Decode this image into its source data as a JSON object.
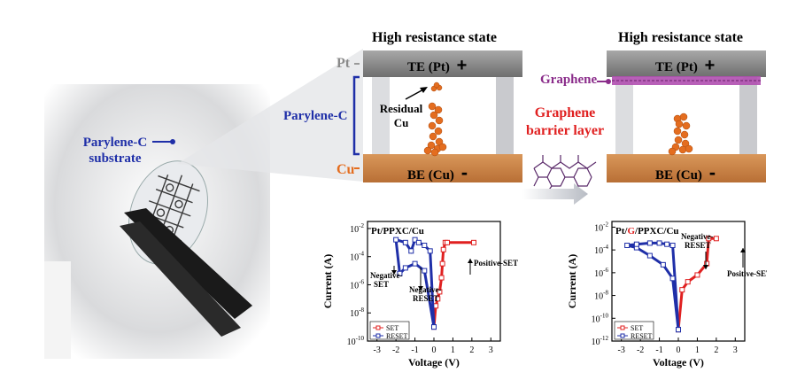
{
  "photo": {
    "label_line1": "Parylene-C",
    "label_line2": "substrate"
  },
  "left_device": {
    "title": "High resistance state",
    "pt_label": "Pt",
    "parylene_label": "Parylene-C",
    "cu_label": "Cu",
    "te_label": "TE (Pt)",
    "te_sign": "+",
    "be_label": "BE (Cu)",
    "be_sign": "-",
    "residual_line1": "Residual",
    "residual_line2": "Cu"
  },
  "middle": {
    "barrier_line1": "Graphene",
    "barrier_line2": "barrier layer"
  },
  "right_device": {
    "title": "High resistance state",
    "graphene_label": "Graphene",
    "te_label": "TE (Pt)",
    "te_sign": "+",
    "be_label": "BE (Cu)",
    "be_sign": "-"
  },
  "colors": {
    "blue": "#1f2fa8",
    "orange": "#e46d1f",
    "purple": "#8b2d8b",
    "red": "#e02020"
  },
  "chart_data": [
    {
      "type": "line",
      "title": "Pt/PPXC/Cu",
      "xlabel": "Voltage (V)",
      "ylabel": "Current (A)",
      "xlim": [
        -3.5,
        3.5
      ],
      "ylim": [
        -10,
        -1.5
      ],
      "xticks": [
        "-3",
        "-2",
        "-1",
        "0",
        "1",
        "2",
        "3"
      ],
      "yticks": [
        "10^-10",
        "10^-8",
        "10^-6",
        "10^-4",
        "10^-2"
      ],
      "legend": [
        "SET",
        "RESET"
      ],
      "annotations": [
        "Negative-SET",
        "Negative-RESET",
        "Positive-SET"
      ],
      "series": [
        {
          "name": "SET",
          "color": "#e02020",
          "x": [
            0,
            0.1,
            0.2,
            0.3,
            0.4,
            0.45,
            0.5,
            0.6,
            0.7,
            2.1
          ],
          "y": [
            -9,
            -7.5,
            -7,
            -6.5,
            -5.5,
            -4.5,
            -3.5,
            -3,
            -3,
            -3
          ]
        },
        {
          "name": "RESET",
          "color": "#1f2fa8",
          "x": [
            0,
            -0.5,
            -1,
            -1.5,
            -1.8,
            -2.0,
            -1.5,
            -1.2,
            -1.0,
            -0.8,
            -0.5,
            -0.2,
            0
          ],
          "y": [
            -9,
            -5,
            -4.5,
            -4.8,
            -5.2,
            -2.8,
            -3.0,
            -3.6,
            -2.8,
            -3.0,
            -3.2,
            -3.6,
            -9
          ]
        }
      ]
    },
    {
      "type": "line",
      "title": "Pt/G/PPXC/Cu",
      "title_parts": [
        "Pt/",
        "G",
        "/PPXC/Cu"
      ],
      "xlabel": "Voltage (V)",
      "ylabel": "Current (A)",
      "xlim": [
        -3.5,
        3.5
      ],
      "ylim": [
        -12,
        -1.5
      ],
      "xticks": [
        "-3",
        "-2",
        "-1",
        "0",
        "1",
        "2",
        "3"
      ],
      "yticks": [
        "10^-12",
        "10^-10",
        "10^-8",
        "10^-6",
        "10^-4",
        "10^-2"
      ],
      "legend": [
        "SET",
        "RESET"
      ],
      "annotations": [
        "Negative-RESET",
        "Positive-SET"
      ],
      "series": [
        {
          "name": "SET",
          "color": "#e02020",
          "x": [
            0,
            0.2,
            0.5,
            1.0,
            1.5,
            1.6,
            2.0
          ],
          "y": [
            -11,
            -7.5,
            -6.8,
            -6.2,
            -5.2,
            -3,
            -3
          ]
        },
        {
          "name": "RESET",
          "color": "#1f2fa8",
          "x": [
            0,
            -0.3,
            -0.8,
            -1.5,
            -2.2,
            -2.7,
            -2.2,
            -1.5,
            -1.0,
            -0.6,
            -0.3,
            0
          ],
          "y": [
            -11,
            -6.5,
            -5.3,
            -4.5,
            -3.8,
            -3.6,
            -3.5,
            -3.4,
            -3.4,
            -3.5,
            -3.6,
            -11
          ]
        }
      ]
    }
  ]
}
